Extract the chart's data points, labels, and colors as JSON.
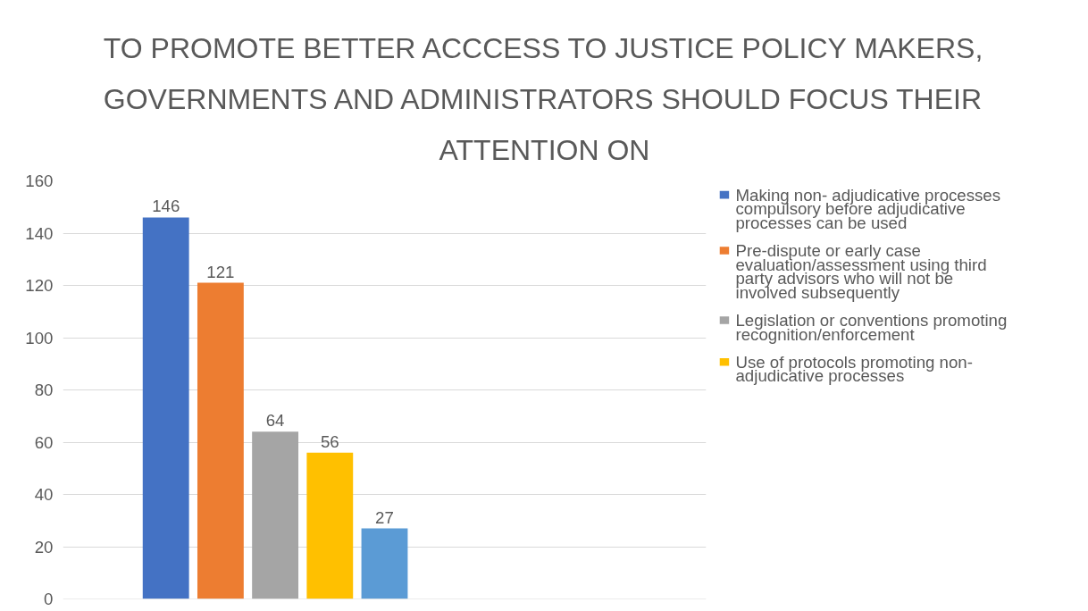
{
  "chart_data": {
    "type": "bar",
    "title": "TO PROMOTE BETTER ACCCESS TO JUSTICE POLICY MAKERS, GOVERNMENTS AND ADMINISTRATORS SHOULD FOCUS THEIR ATTENTION ON",
    "categories": [
      null
    ],
    "series": [
      {
        "name": "Making non- adjudicative processes compulsory before adjudicative processes can be used",
        "color": "#4472c4",
        "values": [
          146
        ]
      },
      {
        "name": "Pre-dispute or early case evaluation/assessment using third party advisors who will not be involved subsequently",
        "color": "#ed7d31",
        "values": [
          121
        ]
      },
      {
        "name": "Legislation or conventions promoting recognition/enforcement",
        "color": "#a5a5a5",
        "values": [
          64
        ]
      },
      {
        "name": "Use of protocols promoting non-adjudicative processes",
        "color": "#ffc000",
        "values": [
          56
        ]
      },
      {
        "color": "#5b9bd5",
        "values": [
          27
        ]
      }
    ],
    "ylim": [
      0,
      160
    ],
    "yticks": [
      0,
      20,
      40,
      60,
      80,
      100,
      120,
      140,
      160
    ],
    "grid": "y",
    "legend": "right",
    "data_labels": true
  }
}
